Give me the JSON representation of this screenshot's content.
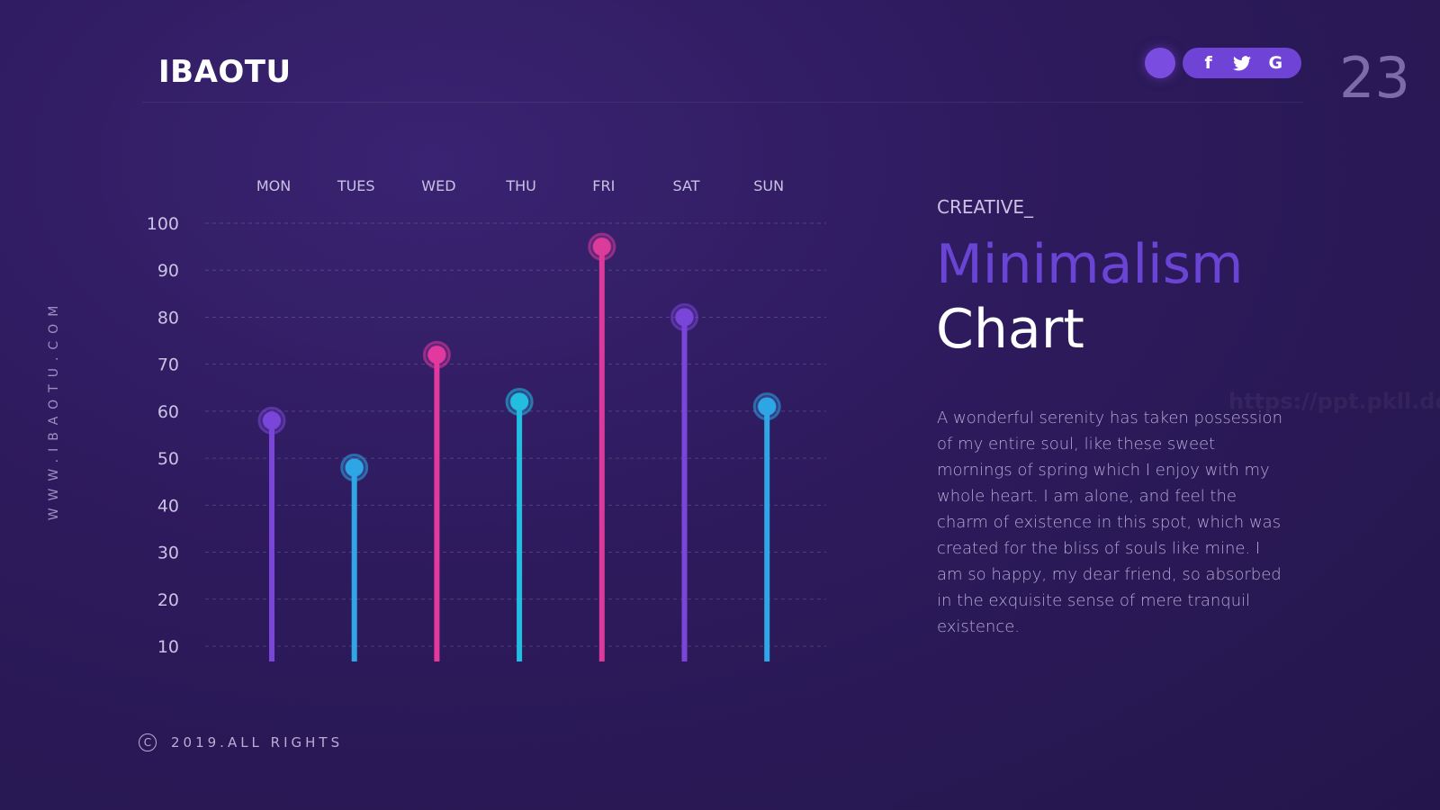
{
  "header": {
    "brand": "IBAOTU",
    "slide_number": "23",
    "social": [
      {
        "name": "facebook-icon",
        "glyph": "f"
      },
      {
        "name": "twitter-icon",
        "glyph": "t"
      },
      {
        "name": "google-icon",
        "glyph": "G"
      }
    ]
  },
  "sidebar": {
    "url": "WWW.IBAOTU.COM"
  },
  "text_panel": {
    "kicker": "CREATIVE_",
    "title_line1": "Minimalism",
    "title_line2": "Chart",
    "description": "A wonderful serenity has taken possession of my entire soul, like these sweet mornings of spring which I enjoy with my whole heart. I am alone, and feel the charm of existence in this spot, which was created for the bliss of souls like mine. I am so happy, my dear friend, so absorbed in the exquisite sense of mere tranquil existence."
  },
  "footer": {
    "copyright": "2019.ALL RIGHTS"
  },
  "watermark": "https://ppt.pkll.de",
  "chart_data": {
    "type": "bar",
    "style": "lollipop",
    "categories": [
      "MON",
      "TUES",
      "WED",
      "THU",
      "FRI",
      "SAT",
      "SUN"
    ],
    "values": [
      58,
      48,
      72,
      62,
      95,
      80,
      61
    ],
    "colors": [
      "#7a45d9",
      "#2fa6e6",
      "#e2399f",
      "#22bde0",
      "#db3a9a",
      "#7a45d9",
      "#2fa6e6"
    ],
    "y_ticks": [
      10,
      20,
      30,
      40,
      50,
      60,
      70,
      80,
      90,
      100
    ],
    "ylim": [
      10,
      100
    ],
    "grid": true,
    "title": "",
    "xlabel": "",
    "ylabel": ""
  }
}
